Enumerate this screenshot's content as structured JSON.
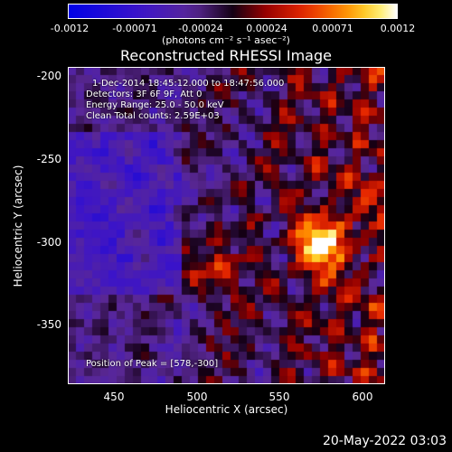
{
  "colorbar": {
    "ticks": [
      "-0.0012",
      "-0.00071",
      "-0.00024",
      "0.00024",
      "0.00071",
      "0.0012"
    ],
    "units": "(photons cm⁻² s⁻¹ asec⁻²)"
  },
  "title": "Reconstructed RHESSI Image",
  "annotations": {
    "time_range": "1-Dec-2014 18:45:12.000 to 18:47:56.000",
    "detectors": "Detectors: 3F 6F 9F, Att 0",
    "energy": "Energy Range: 25.0 - 50.0 keV",
    "clean": "Clean     Total counts: 2.59E+03",
    "peak": "Position of Peak = [578,-300]"
  },
  "axes": {
    "xlabel": "Heliocentric X (arcsec)",
    "ylabel": "Heliocentric Y (arcsec)",
    "xticks": [
      "450",
      "500",
      "550",
      "600"
    ],
    "yticks": [
      "-200",
      "-250",
      "-300",
      "-350"
    ]
  },
  "footer": {
    "date": "20-May-2022 03:03"
  }
}
